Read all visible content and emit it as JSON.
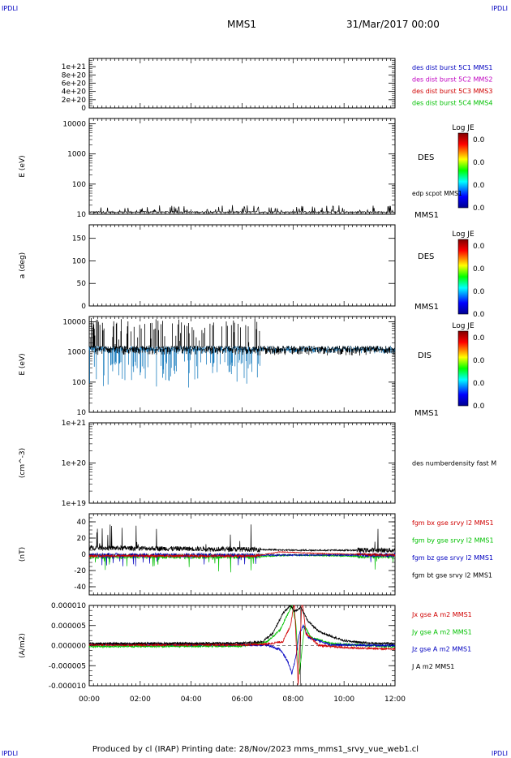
{
  "header": {
    "corner_label": "IPDLI",
    "spacecraft": "MMS1",
    "datetime": "31/Mar/2017 00:00"
  },
  "footer": {
    "text": "Produced by cl (IRAP)   Printing date: 28/Nov/2023   mms_mms1_srvy_vue_web1.cl"
  },
  "time_axis": {
    "range_hours": [
      0,
      12
    ],
    "ticks": [
      "00:00",
      "02:00",
      "04:00",
      "06:00",
      "08:00",
      "10:00",
      "12:00"
    ]
  },
  "chart_data": [
    {
      "type": "line",
      "ylabel": "",
      "ylim": [
        0,
        1.2e+21
      ],
      "yticks": [
        0,
        2e+20,
        4e+20,
        6e+20,
        8e+20,
        1e+21
      ],
      "yticklabels": [
        "0",
        "2e+20",
        "4e+20",
        "6e+20",
        "8e+20",
        "1e+21"
      ],
      "zero_line": "dashed",
      "legend": [
        {
          "label": "des dist burst 5C1 MMS1",
          "color": "#0000c0"
        },
        {
          "label": "des dist burst 5C2 MMS2",
          "color": "#c000c0"
        },
        {
          "label": "des dist burst 5C3 MMS3",
          "color": "#d00000"
        },
        {
          "label": "des dist burst 5C4 MMS4",
          "color": "#00c000"
        }
      ]
    },
    {
      "type": "heatmap",
      "ylabel": "E (eV)",
      "yscale": "log",
      "ylim": [
        10,
        15000
      ],
      "yticklabels": [
        "10",
        "100",
        "1000",
        "10000"
      ],
      "species": "DES",
      "overlay_label": "edp scpot MMS1",
      "spacecraft": "MMS1",
      "colorbar": {
        "title": "Log JE",
        "labels": [
          "0.0",
          "0.0",
          "0.0",
          "0.0"
        ]
      }
    },
    {
      "type": "heatmap",
      "ylabel": "a (deg)",
      "ylim": [
        0,
        180
      ],
      "yticklabels": [
        "0",
        "50",
        "100",
        "150"
      ],
      "species": "DES",
      "spacecraft": "MMS1",
      "colorbar": {
        "title": "Log JE",
        "labels": [
          "0.0",
          "0.0",
          "0.0",
          "0.0"
        ]
      }
    },
    {
      "type": "heatmap",
      "ylabel": "E (eV)",
      "yscale": "log",
      "ylim": [
        10,
        15000
      ],
      "yticklabels": [
        "10",
        "100",
        "1000",
        "10000"
      ],
      "species": "DIS",
      "spacecraft": "MMS1",
      "colorbar": {
        "title": "Log JE",
        "labels": [
          "0.0",
          "0.0",
          "0.0",
          "0.0"
        ]
      }
    },
    {
      "type": "line",
      "ylabel": "(cm^-3)",
      "yscale": "log",
      "ylim": [
        1e+19,
        1e+21
      ],
      "yticklabels": [
        "1e+19",
        "1e+20",
        "1e+21"
      ],
      "legend": [
        {
          "label": "des numberdensity fast M",
          "color": "#000000"
        }
      ]
    },
    {
      "type": "line",
      "ylabel": "(nT)",
      "ylim": [
        -50,
        50
      ],
      "yticks": [
        -40,
        -20,
        0,
        20,
        40
      ],
      "yticklabels": [
        "-40",
        "-20",
        "0",
        "20",
        "40"
      ],
      "legend": [
        {
          "label": "fgm bx gse srvy l2 MMS1",
          "color": "#d00000"
        },
        {
          "label": "fgm by gse srvy l2 MMS1",
          "color": "#00c000"
        },
        {
          "label": "fgm bz gse srvy l2 MMS1",
          "color": "#0000c0"
        },
        {
          "label": "fgm bt gse srvy l2 MMS1",
          "color": "#000000"
        }
      ],
      "series": [
        {
          "name": "fgm bx gse srvy l2 MMS1",
          "color": "#d00000",
          "baseline": [
            [
              0,
              -2
            ],
            [
              6.5,
              -2
            ],
            [
              7.5,
              3
            ],
            [
              8.3,
              2
            ],
            [
              9,
              1
            ],
            [
              10.5,
              0
            ],
            [
              12,
              -1
            ]
          ],
          "noise": 3,
          "spikes": 0
        },
        {
          "name": "fgm by gse srvy l2 MMS1",
          "color": "#00c000",
          "baseline": [
            [
              0,
              -3
            ],
            [
              6.5,
              -3
            ],
            [
              8,
              -1
            ],
            [
              12,
              -3
            ]
          ],
          "noise": 5,
          "spikes": -18
        },
        {
          "name": "fgm bz gse srvy l2 MMS1",
          "color": "#0000c0",
          "baseline": [
            [
              0,
              -1
            ],
            [
              12,
              -1
            ]
          ],
          "noise": 5,
          "spikes": -14
        },
        {
          "name": "fgm bt gse srvy l2 MMS1",
          "color": "#000000",
          "baseline": [
            [
              0,
              8
            ],
            [
              6.5,
              6
            ],
            [
              8,
              5
            ],
            [
              12,
              5
            ]
          ],
          "noise": 6,
          "spikes": 30
        }
      ]
    },
    {
      "type": "line",
      "ylabel": "(A/m2)",
      "ylim": [
        -1e-05,
        1e-05
      ],
      "yticks": [
        -1e-05,
        -5e-06,
        0,
        5e-06,
        1e-05
      ],
      "yticklabels": [
        "-0.000010",
        "-0.000005",
        "0.000000",
        "0.000005",
        "0.000010"
      ],
      "legend": [
        {
          "label": "Jx gse A m2 MMS1",
          "color": "#d00000"
        },
        {
          "label": "Jy gse A m2 MMS1",
          "color": "#00c000"
        },
        {
          "label": "Jz gse A m2 MMS1",
          "color": "#0000c0"
        },
        {
          "label": "J A m2 MMS1",
          "color": "#000000"
        }
      ],
      "series": [
        {
          "name": "Jx gse A m2 MMS1",
          "color": "#d00000",
          "points": [
            [
              0,
              2e-07
            ],
            [
              6,
              2e-07
            ],
            [
              7,
              4e-07
            ],
            [
              7.6,
              1e-06
            ],
            [
              7.9,
              5e-06
            ],
            [
              8.05,
              1.1e-05
            ],
            [
              8.2,
              -1e-05
            ],
            [
              8.35,
              1.2e-05
            ],
            [
              8.5,
              3e-06
            ],
            [
              9,
              1e-07
            ],
            [
              10,
              -5e-07
            ],
            [
              11,
              -7e-07
            ],
            [
              12,
              -8e-07
            ]
          ]
        },
        {
          "name": "Jy gse A m2 MMS1",
          "color": "#00c000",
          "points": [
            [
              0,
              -2e-07
            ],
            [
              6,
              -1e-07
            ],
            [
              7,
              1e-06
            ],
            [
              7.5,
              4e-06
            ],
            [
              7.8,
              8e-06
            ],
            [
              7.95,
              1e-05
            ],
            [
              8.1,
              6e-06
            ],
            [
              8.25,
              -7e-06
            ],
            [
              8.45,
              5e-06
            ],
            [
              8.7,
              2e-06
            ],
            [
              9.5,
              5e-07
            ],
            [
              12,
              -3e-07
            ]
          ]
        },
        {
          "name": "Jz gse A m2 MMS1",
          "color": "#0000c0",
          "points": [
            [
              0,
              3e-07
            ],
            [
              6,
              2e-07
            ],
            [
              7,
              1e-07
            ],
            [
              7.5,
              -1e-06
            ],
            [
              7.8,
              -4e-06
            ],
            [
              7.95,
              -7e-06
            ],
            [
              8.1,
              -3e-06
            ],
            [
              8.25,
              3e-06
            ],
            [
              8.4,
              5e-06
            ],
            [
              8.6,
              2e-06
            ],
            [
              9.5,
              2e-07
            ],
            [
              12,
              0
            ]
          ]
        },
        {
          "name": "J A m2 MMS1",
          "color": "#000000",
          "points": [
            [
              0,
              5e-07
            ],
            [
              6,
              6e-07
            ],
            [
              6.8,
              1e-06
            ],
            [
              7.2,
              3e-06
            ],
            [
              7.6,
              8e-06
            ],
            [
              7.9,
              1e-05
            ],
            [
              8.05,
              8.5e-06
            ],
            [
              8.3,
              9.5e-06
            ],
            [
              8.6,
              6e-06
            ],
            [
              9,
              3.5e-06
            ],
            [
              10,
              1.2e-06
            ],
            [
              11,
              6e-07
            ],
            [
              12,
              5e-07
            ]
          ]
        }
      ]
    }
  ]
}
